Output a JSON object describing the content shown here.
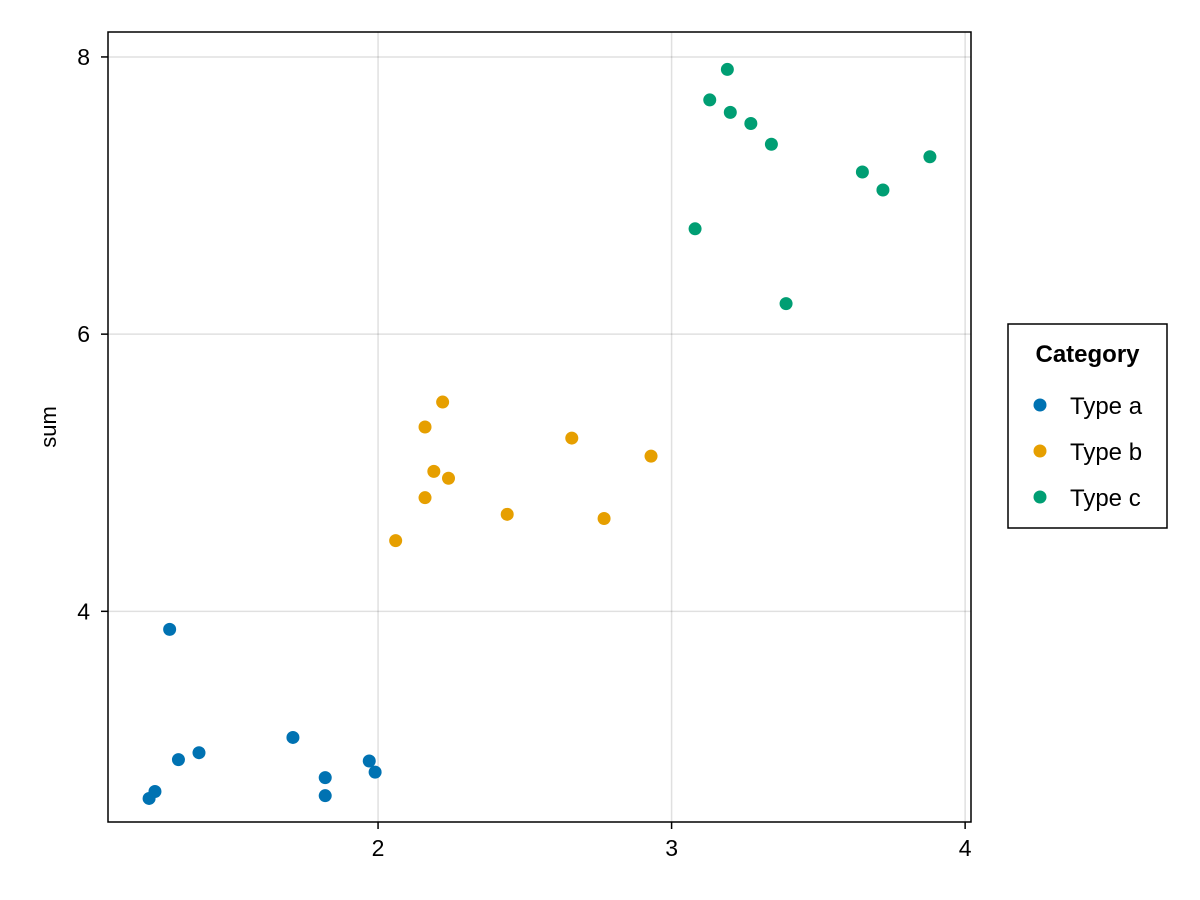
{
  "chart_data": {
    "type": "scatter",
    "title": "",
    "xlabel": "",
    "ylabel": "sum",
    "xlim": [
      1.08,
      4.02
    ],
    "ylim": [
      2.48,
      8.18
    ],
    "xticks": [
      2,
      3,
      4
    ],
    "yticks": [
      4,
      6,
      8
    ],
    "grid": true,
    "legend": {
      "title": "Category",
      "placement": "right"
    },
    "series": [
      {
        "name": "Type a",
        "color": "#0072B2",
        "points": [
          {
            "x": 1.22,
            "y": 2.65
          },
          {
            "x": 1.24,
            "y": 2.7
          },
          {
            "x": 1.29,
            "y": 3.87
          },
          {
            "x": 1.32,
            "y": 2.93
          },
          {
            "x": 1.39,
            "y": 2.98
          },
          {
            "x": 1.71,
            "y": 3.09
          },
          {
            "x": 1.82,
            "y": 2.8
          },
          {
            "x": 1.82,
            "y": 2.67
          },
          {
            "x": 1.97,
            "y": 2.92
          },
          {
            "x": 1.99,
            "y": 2.84
          }
        ]
      },
      {
        "name": "Type b",
        "color": "#E69F00",
        "points": [
          {
            "x": 2.06,
            "y": 4.51
          },
          {
            "x": 2.16,
            "y": 4.82
          },
          {
            "x": 2.16,
            "y": 5.33
          },
          {
            "x": 2.19,
            "y": 5.01
          },
          {
            "x": 2.22,
            "y": 5.51
          },
          {
            "x": 2.24,
            "y": 4.96
          },
          {
            "x": 2.44,
            "y": 4.7
          },
          {
            "x": 2.66,
            "y": 5.25
          },
          {
            "x": 2.77,
            "y": 4.67
          },
          {
            "x": 2.93,
            "y": 5.12
          }
        ]
      },
      {
        "name": "Type c",
        "color": "#009E73",
        "points": [
          {
            "x": 3.08,
            "y": 6.76
          },
          {
            "x": 3.13,
            "y": 7.69
          },
          {
            "x": 3.19,
            "y": 7.91
          },
          {
            "x": 3.2,
            "y": 7.6
          },
          {
            "x": 3.27,
            "y": 7.52
          },
          {
            "x": 3.34,
            "y": 7.37
          },
          {
            "x": 3.39,
            "y": 6.22
          },
          {
            "x": 3.65,
            "y": 7.17
          },
          {
            "x": 3.72,
            "y": 7.04
          },
          {
            "x": 3.88,
            "y": 7.28
          }
        ]
      }
    ]
  }
}
